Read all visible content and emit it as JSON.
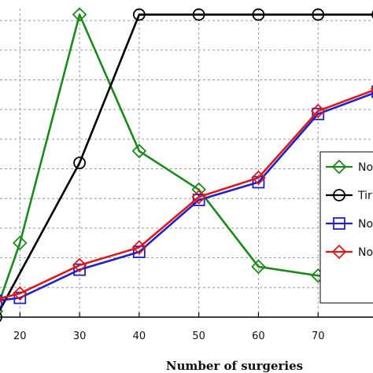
{
  "chart_data": {
    "type": "line",
    "xlabel": "Number of surgeries",
    "x_ticks": [
      20,
      30,
      40,
      50,
      60,
      70
    ],
    "xlim": [
      16,
      80
    ],
    "ylim": [
      0,
      10.4
    ],
    "y_grid_values": [
      1,
      2,
      3,
      4,
      5,
      6,
      7,
      8,
      9,
      10
    ],
    "grid": true,
    "legend_position": "right",
    "series": [
      {
        "name": "No",
        "color": "#1a8a1a",
        "marker": "diamond",
        "x": [
          16,
          20,
          30,
          40,
          50,
          60,
          70,
          80
        ],
        "y": [
          0.2,
          2.5,
          10.2,
          5.6,
          4.3,
          1.7,
          1.4,
          1.0
        ]
      },
      {
        "name": "Tir",
        "color": "#000000",
        "marker": "circle",
        "x": [
          16,
          30,
          40,
          50,
          60,
          70,
          80
        ],
        "y": [
          0.0,
          5.2,
          10.2,
          10.2,
          10.2,
          10.2,
          10.2
        ]
      },
      {
        "name": "No",
        "color": "#1f1fcc",
        "marker": "square",
        "x": [
          16,
          20,
          30,
          40,
          50,
          60,
          70,
          80
        ],
        "y": [
          0.55,
          0.65,
          1.6,
          2.2,
          3.95,
          4.55,
          6.85,
          7.6
        ]
      },
      {
        "name": "No",
        "color": "#e01818",
        "marker": "diamond",
        "x": [
          16,
          20,
          30,
          40,
          50,
          60,
          70,
          80
        ],
        "y": [
          0.6,
          0.8,
          1.75,
          2.35,
          4.05,
          4.7,
          6.95,
          7.7
        ]
      }
    ]
  }
}
